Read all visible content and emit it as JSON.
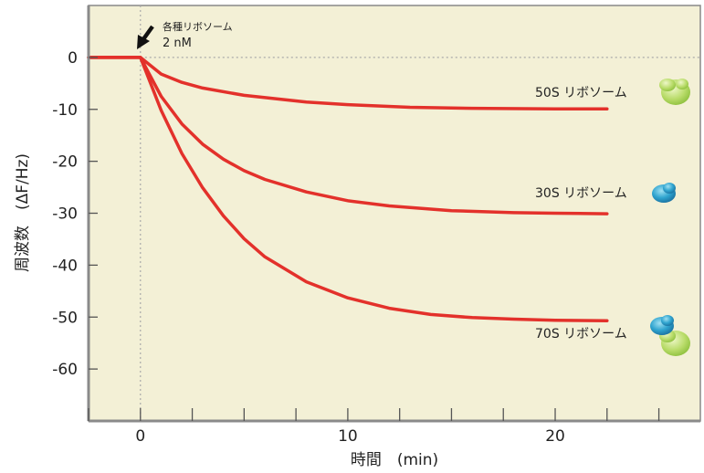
{
  "chart_data": {
    "type": "line",
    "xlabel": "時間　(min)",
    "ylabel": "周波数　(ΔF/Hz)",
    "xlim": [
      -2.5,
      27
    ],
    "ylim": [
      -70,
      10
    ],
    "x_ticks": [
      0,
      10,
      20
    ],
    "y_ticks": [
      0,
      -10,
      -20,
      -30,
      -40,
      -50,
      -60
    ],
    "grid": false,
    "background_color": "#f3f0d6",
    "line_color": "#e3312b",
    "baseline_dotted": true,
    "injection_marker": {
      "x": 0,
      "label_line1": "各種リボソーム",
      "label_line2": "2 nM"
    },
    "series": [
      {
        "name": "50S リボソーム",
        "x": [
          -2.5,
          0,
          1,
          2,
          3,
          5,
          8,
          10,
          13,
          16,
          20,
          22.5
        ],
        "y": [
          0,
          0,
          -3.2,
          -4.8,
          -5.9,
          -7.3,
          -8.6,
          -9.1,
          -9.6,
          -9.8,
          -9.9,
          -9.9
        ]
      },
      {
        "name": "30S リボソーム",
        "x": [
          -2.5,
          0,
          1,
          2,
          3,
          4,
          5,
          6,
          8,
          10,
          12,
          15,
          18,
          20,
          22.5
        ],
        "y": [
          0,
          0,
          -7.5,
          -12.8,
          -16.7,
          -19.6,
          -21.8,
          -23.5,
          -25.9,
          -27.6,
          -28.6,
          -29.5,
          -29.9,
          -30.0,
          -30.1
        ]
      },
      {
        "name": "70S リボソーム",
        "x": [
          -2.5,
          0,
          1,
          2,
          3,
          4,
          5,
          6,
          8,
          10,
          12,
          14,
          16,
          18,
          20,
          22.5
        ],
        "y": [
          0,
          0,
          -10.2,
          -18.5,
          -25.1,
          -30.5,
          -34.9,
          -38.4,
          -43.2,
          -46.3,
          -48.3,
          -49.5,
          -50.1,
          -50.4,
          -50.6,
          -50.7
        ]
      }
    ]
  }
}
